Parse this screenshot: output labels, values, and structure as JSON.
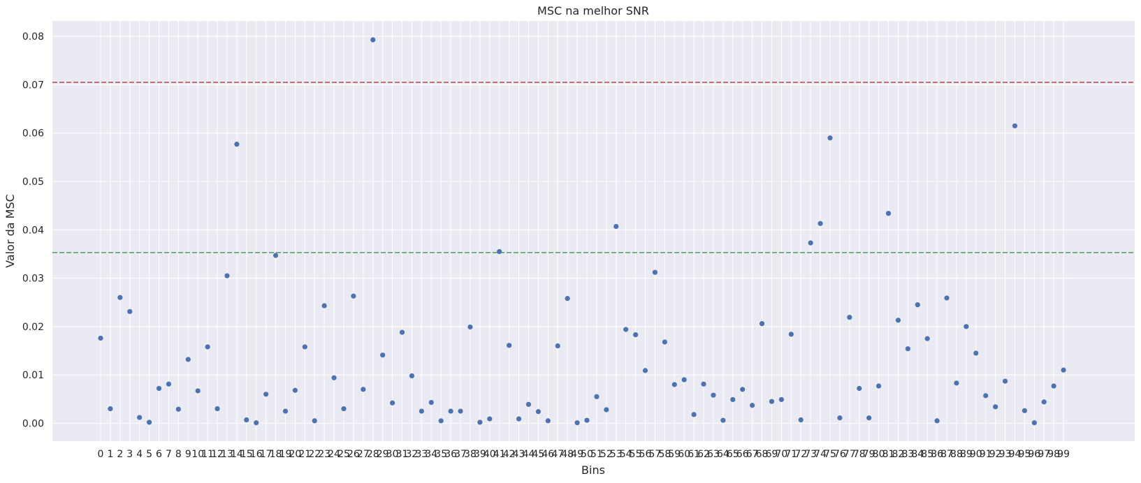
{
  "chart_data": {
    "type": "scatter",
    "title": "MSC na melhor SNR",
    "xlabel": "Bins",
    "ylabel": "Valor da MSC",
    "ylim": [
      -0.0037,
      0.0832
    ],
    "y_ticks": [
      0.0,
      0.01,
      0.02,
      0.03,
      0.04,
      0.05,
      0.06,
      0.07,
      0.08
    ],
    "y_tick_labels": [
      "0.00",
      "0.01",
      "0.02",
      "0.03",
      "0.04",
      "0.05",
      "0.06",
      "0.07",
      "0.08"
    ],
    "grid": true,
    "colors": {
      "background": "#eaeaf2",
      "grid": "#ffffff",
      "points": "#4c72b0",
      "threshold_red": "#c44e52",
      "threshold_green": "#55a868"
    },
    "hlines": [
      {
        "value": 0.0705,
        "color": "#c44e52",
        "style": "dashed"
      },
      {
        "value": 0.0353,
        "color": "#55a868",
        "style": "dashed"
      }
    ],
    "x": [
      0,
      1,
      2,
      3,
      4,
      5,
      6,
      7,
      8,
      9,
      10,
      11,
      12,
      13,
      14,
      15,
      16,
      17,
      18,
      19,
      20,
      21,
      22,
      23,
      24,
      25,
      26,
      27,
      28,
      29,
      30,
      31,
      32,
      33,
      34,
      35,
      36,
      37,
      38,
      39,
      40,
      41,
      42,
      43,
      44,
      45,
      46,
      47,
      48,
      49,
      50,
      51,
      52,
      53,
      54,
      55,
      56,
      57,
      58,
      59,
      60,
      61,
      62,
      63,
      64,
      65,
      66,
      67,
      68,
      69,
      70,
      71,
      72,
      73,
      74,
      75,
      76,
      77,
      78,
      79,
      80,
      81,
      82,
      83,
      84,
      85,
      86,
      87,
      88,
      89,
      90,
      91,
      92,
      93,
      94,
      95,
      96,
      97,
      98,
      99
    ],
    "y": [
      0.0176,
      0.003,
      0.026,
      0.0231,
      0.0012,
      0.0002,
      0.0072,
      0.0081,
      0.0029,
      0.0132,
      0.0067,
      0.0158,
      0.003,
      0.0305,
      0.0577,
      0.0007,
      0.0001,
      0.006,
      0.0347,
      0.0025,
      0.0068,
      0.0158,
      0.0005,
      0.0243,
      0.0094,
      0.003,
      0.0263,
      0.007,
      0.0793,
      0.0141,
      0.0042,
      0.0188,
      0.0098,
      0.0025,
      0.0043,
      0.0005,
      0.0025,
      0.0025,
      0.0199,
      0.0002,
      0.0009,
      0.0355,
      0.0161,
      0.0009,
      0.0039,
      0.0024,
      0.0005,
      0.016,
      0.0258,
      0.0001,
      0.0006,
      0.0055,
      0.0028,
      0.0407,
      0.0194,
      0.0183,
      0.0109,
      0.0312,
      0.0168,
      0.008,
      0.009,
      0.0018,
      0.0081,
      0.0058,
      0.0006,
      0.0049,
      0.007,
      0.0037,
      0.0206,
      0.0045,
      0.0049,
      0.0184,
      0.0007,
      0.0373,
      0.0413,
      0.059,
      0.0011,
      0.0219,
      0.0072,
      0.0011,
      0.0077,
      0.0434,
      0.0213,
      0.0154,
      0.0245,
      0.0175,
      0.0005,
      0.0259,
      0.0083,
      0.02,
      0.0145,
      0.0057,
      0.0034,
      0.0087,
      0.0615,
      0.0026,
      0.0001,
      0.0044,
      0.0077,
      0.011
    ]
  }
}
